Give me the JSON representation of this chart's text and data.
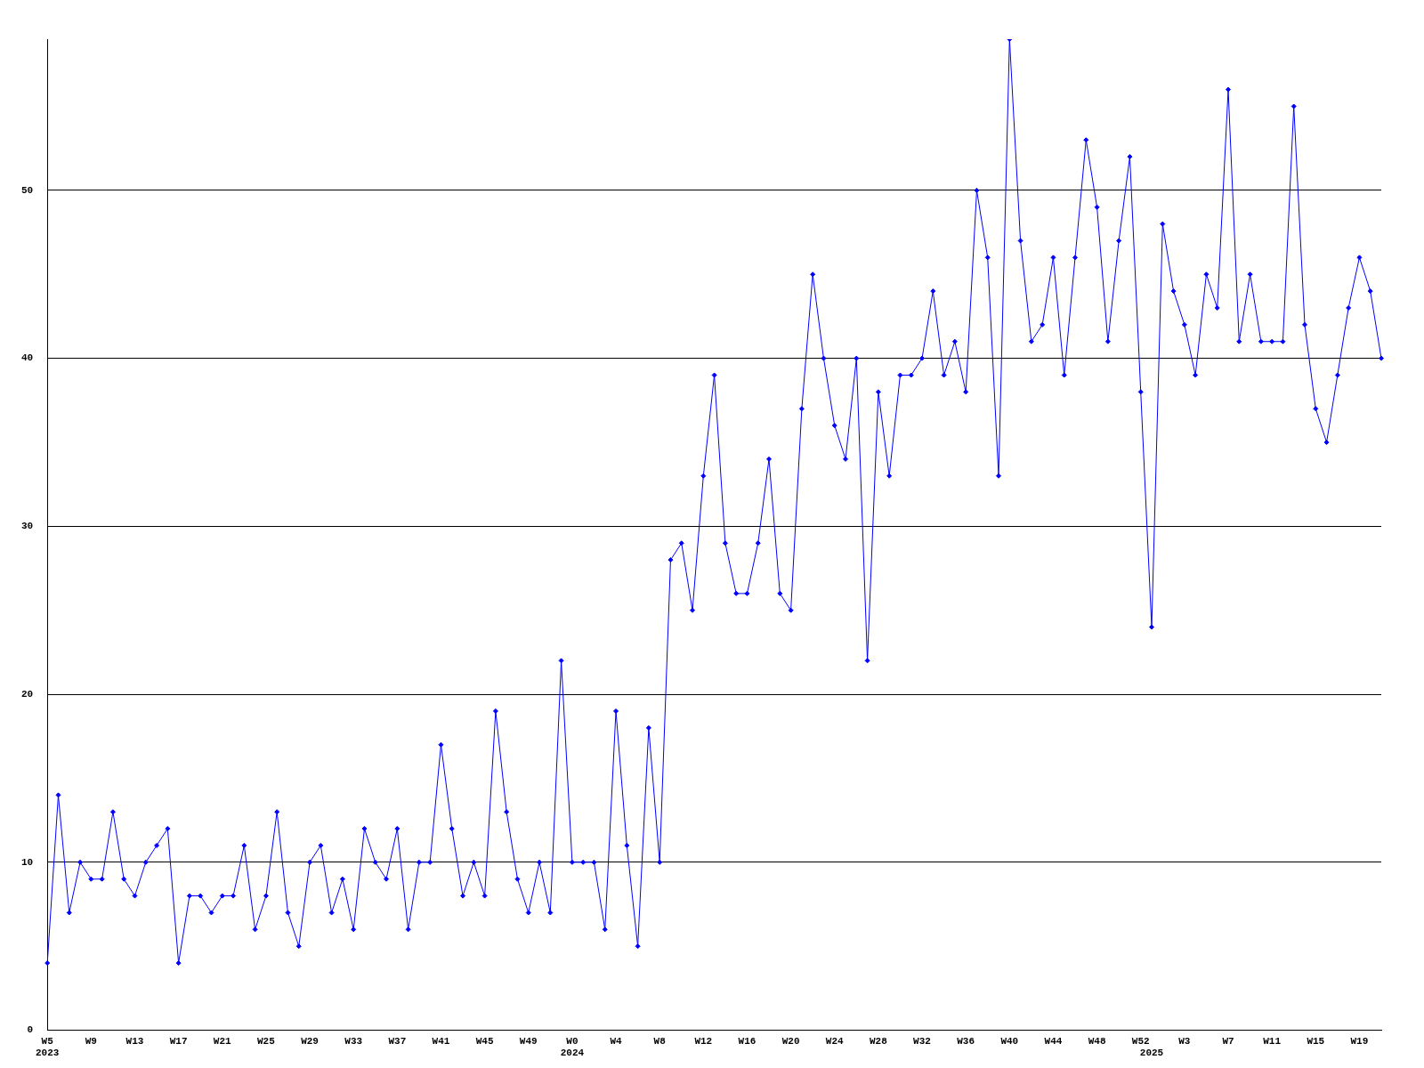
{
  "chart_data": {
    "type": "line",
    "categories": [
      "W5\n2023",
      null,
      null,
      null,
      "W9",
      null,
      null,
      null,
      "W13",
      null,
      null,
      null,
      "W17",
      null,
      null,
      null,
      "W21",
      null,
      null,
      null,
      "W25",
      null,
      null,
      null,
      "W29",
      null,
      null,
      null,
      "W33",
      null,
      null,
      null,
      "W37",
      null,
      null,
      null,
      "W41",
      null,
      null,
      null,
      "W45",
      null,
      null,
      null,
      "W49",
      null,
      null,
      null,
      "W0\n2024",
      null,
      null,
      null,
      "W4",
      null,
      null,
      null,
      "W8",
      null,
      null,
      null,
      "W12",
      null,
      null,
      null,
      "W16",
      null,
      null,
      null,
      "W20",
      null,
      null,
      null,
      "W24",
      null,
      null,
      null,
      "W28",
      null,
      null,
      null,
      "W32",
      null,
      null,
      null,
      "W36",
      null,
      null,
      null,
      "W40",
      null,
      null,
      null,
      "W44",
      null,
      null,
      null,
      "W48",
      null,
      null,
      null,
      "W52",
      "\n2025",
      null,
      null,
      "W3",
      null,
      null,
      null,
      "W7",
      null,
      null,
      null,
      "W11",
      null,
      null,
      null,
      "W15",
      null,
      null,
      null,
      "W19",
      null,
      null
    ],
    "series": [
      {
        "color": "#0000ff",
        "values": [
          4,
          14,
          7,
          10,
          9,
          9,
          13,
          9,
          8,
          10,
          11,
          12,
          4,
          8,
          8,
          7,
          8,
          8,
          11,
          6,
          8,
          13,
          7,
          5,
          10,
          11,
          7,
          9,
          6,
          12,
          10,
          9,
          12,
          6,
          10,
          10,
          17,
          12,
          8,
          10,
          8,
          19,
          13,
          9,
          7,
          10,
          7,
          22,
          10,
          10,
          10,
          6,
          19,
          11,
          5,
          18,
          10,
          28,
          29,
          25,
          33,
          39,
          29,
          26,
          26,
          29,
          34,
          26,
          25,
          37,
          45,
          40,
          36,
          34,
          40,
          22,
          38,
          33,
          39,
          39,
          40,
          44,
          39,
          41,
          38,
          50,
          46,
          33,
          59,
          47,
          41,
          42,
          46,
          39,
          46,
          53,
          49,
          41,
          47,
          52,
          38,
          24,
          48,
          44,
          42,
          39,
          45,
          43,
          56,
          41,
          45,
          41,
          41,
          41,
          55,
          42,
          37,
          35,
          39,
          43,
          46,
          44,
          40
        ]
      }
    ],
    "ylim": [
      0,
      59
    ],
    "yticks": [
      0,
      10,
      20,
      30,
      40,
      50
    ],
    "grid": "y",
    "legend": false,
    "marker": "diamond",
    "line_style": "solid"
  }
}
